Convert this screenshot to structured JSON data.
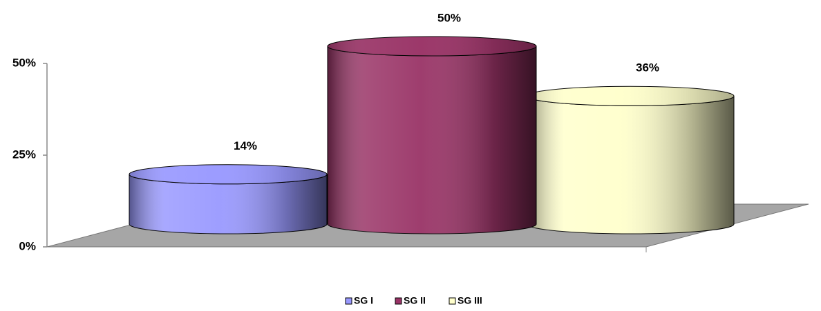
{
  "chart_data": {
    "type": "cylinder",
    "categories": [
      null
    ],
    "series": [
      {
        "name": "SG I",
        "color": "#9999ff",
        "values": [
          14
        ],
        "value_labels": [
          "14%"
        ]
      },
      {
        "name": "SG II",
        "color": "#993366",
        "values": [
          50
        ],
        "value_labels": [
          "50%"
        ]
      },
      {
        "name": "SG III",
        "color": "#ffffcc",
        "values": [
          36
        ],
        "value_labels": [
          "36%"
        ]
      }
    ],
    "ylim": [
      0,
      50
    ],
    "yticks": [
      {
        "value": 0,
        "label": "0%"
      },
      {
        "value": 25,
        "label": "25%"
      },
      {
        "value": 50,
        "label": "50%"
      }
    ],
    "legend": "bottom"
  }
}
